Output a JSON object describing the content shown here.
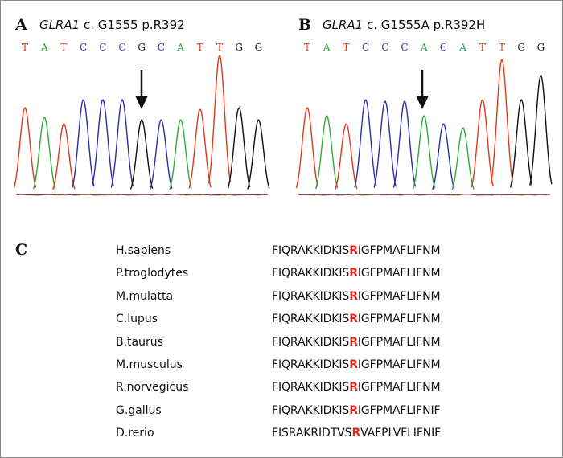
{
  "panel_a": {
    "letter": "A",
    "gene": "GLRA1",
    "mutation": "c. G1555 p.R392",
    "bases": [
      "T",
      "A",
      "T",
      "C",
      "C",
      "C",
      "G",
      "C",
      "A",
      "T",
      "T",
      "G",
      "G"
    ]
  },
  "panel_b": {
    "letter": "B",
    "gene": "GLRA1",
    "mutation": "c. G1555A p.R392H",
    "bases": [
      "T",
      "A",
      "T",
      "C",
      "C",
      "C",
      "A",
      "C",
      "A",
      "T",
      "T",
      "G",
      "G"
    ]
  },
  "base_colors": {
    "A": "#2eaa3c",
    "C": "#2a2fa8",
    "G": "#111111",
    "T": "#e0391a"
  },
  "alignment": {
    "letter": "C",
    "rows": [
      {
        "species": "H.sapiens",
        "pre": "FIQRAKKIDKIS",
        "residue": "R",
        "post": "IGFPMAFLIFNM"
      },
      {
        "species": "P.troglodytes",
        "pre": "FIQRAKKIDKIS",
        "residue": "R",
        "post": "IGFPMAFLIFNM"
      },
      {
        "species": "M.mulatta",
        "pre": "FIQRAKKIDKIS",
        "residue": "R",
        "post": "IGFPMAFLIFNM"
      },
      {
        "species": "C.lupus",
        "pre": "FIQRAKKIDKIS",
        "residue": "R",
        "post": "IGFPMAFLIFNM"
      },
      {
        "species": "B.taurus",
        "pre": "FIQRAKKIDKIS",
        "residue": "R",
        "post": "IGFPMAFLIFNM"
      },
      {
        "species": "M.musculus",
        "pre": "FIQRAKKIDKIS",
        "residue": "R",
        "post": "IGFPMAFLIFNM"
      },
      {
        "species": "R.norvegicus",
        "pre": "FIQRAKKIDKIS",
        "residue": "R",
        "post": "IGFPMAFLIFNM"
      },
      {
        "species": "G.gallus",
        "pre": "FIQRAKKIDKIS",
        "residue": "R",
        "post": "IGFPMAFLIFNIF"
      },
      {
        "species": "D.rerio",
        "pre": "FISRAKRIDTVS",
        "residue": "R",
        "post": "VAFPLVFLIFNIF"
      }
    ]
  }
}
